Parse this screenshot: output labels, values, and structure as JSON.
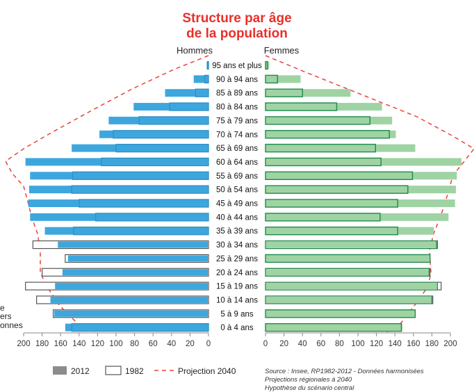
{
  "chart_data": {
    "type": "bar",
    "title_line1": "Structure par âge",
    "title_line2": "de la population",
    "left_header": "Hommes",
    "right_header": "Femmes",
    "categories": [
      "95 ans et plus",
      "90 à 94 ans",
      "85 à 89 ans",
      "80 à 84 ans",
      "75 à 79 ans",
      "70 à 74 ans",
      "65 à 69 ans",
      "60 à 64 ans",
      "55 à 69 ans",
      "50 à 54 ans",
      "45 à 49 ans",
      "40 à 44 ans",
      "35 à 39 ans",
      "30 à 34 ans",
      "25 à 29 ans",
      "20 à 24 ans",
      "15 à 19 ans",
      "10 à 14 ans",
      "5 à 9 ans",
      "0 à 4 ans"
    ],
    "x_ticks_left": [
      "200",
      "180",
      "160",
      "140",
      "120",
      "100",
      "80",
      "60",
      "40",
      "20",
      "0"
    ],
    "x_ticks_right": [
      "0",
      "20",
      "40",
      "60",
      "80",
      "100",
      "120",
      "140",
      "160",
      "180",
      "200"
    ],
    "xlim": [
      0,
      200
    ],
    "series": [
      {
        "name": "2012",
        "hommes": [
          2,
          16,
          47,
          81,
          108,
          118,
          148,
          198,
          193,
          194,
          195,
          193,
          177,
          163,
          152,
          158,
          166,
          171,
          167,
          155
        ],
        "femmes": [
          4,
          38,
          92,
          126,
          137,
          141,
          162,
          212,
          207,
          206,
          205,
          198,
          182,
          185,
          178,
          177,
          186,
          180,
          162,
          148
        ]
      },
      {
        "name": "1982",
        "hommes": [
          1,
          4,
          14,
          42,
          75,
          103,
          100,
          116,
          147,
          148,
          140,
          122,
          146,
          190,
          155,
          180,
          198,
          186,
          168,
          148
        ],
        "femmes": [
          2,
          13,
          40,
          77,
          113,
          134,
          119,
          125,
          159,
          154,
          143,
          124,
          143,
          186,
          178,
          178,
          190,
          181,
          162,
          147
        ]
      },
      {
        "name": "Projection 2040"
      }
    ],
    "legend": [
      "2012",
      "1982",
      "Projection 2040"
    ],
    "colors": {
      "hommes": "#3da7dd",
      "hommes_1982": "#2f8fc6",
      "femmes": "#9fd3a4",
      "femmes_1982": "#1f8a4a",
      "projection": "#e8433a",
      "title": "#e8302a"
    },
    "source_lines": [
      "Source : Insee, RP1982-2012 - Données harmonisées",
      "Projections régionales à 2040",
      "Hypothèse du scénario central"
    ],
    "cut_edge_text": [
      "e",
      "ers",
      "onnes"
    ]
  }
}
